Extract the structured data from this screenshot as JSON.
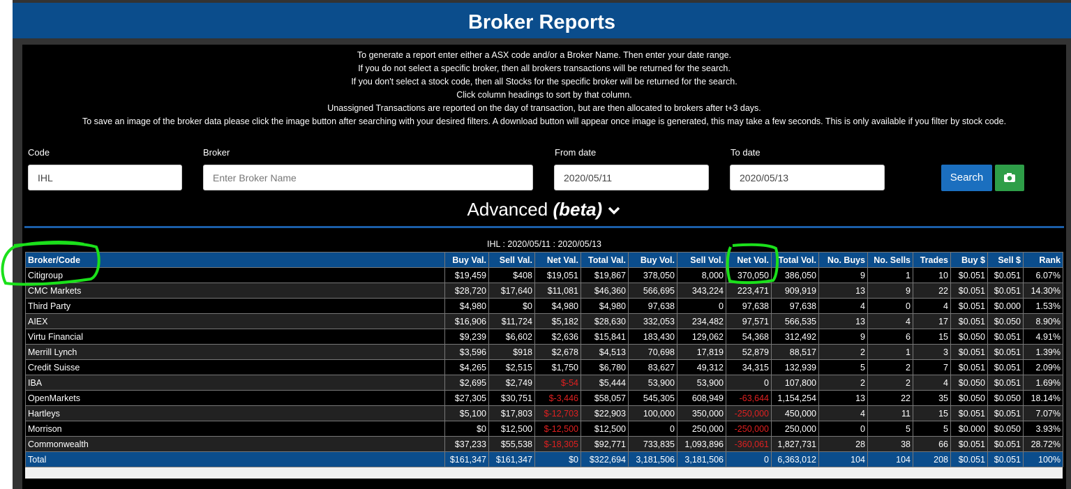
{
  "header": {
    "title": "Broker Reports"
  },
  "instructions": [
    "To generate a report enter either a ASX code and/or a Broker Name. Then enter your date range.",
    "If you do not select a specific broker, then all brokers transactions will be returned for the search.",
    "If you don't select a stock code, then all Stocks for the specific broker will be returned for the search.",
    "Click column headings to sort by that column.",
    "Unassigned Transactions are reported on the day of transaction, but are then allocated to brokers after t+3 days.",
    "To save an image of the broker data please click the image button after searching with your desired filters. A download button will appear once image is generated, this may take a few seconds. This is only available if you filter by stock code."
  ],
  "form": {
    "fields": [
      {
        "label": "Code",
        "value": "IHL"
      },
      {
        "label": "Broker",
        "placeholder": "Enter Broker Name"
      },
      {
        "label": "From date",
        "value": "2020/05/11"
      },
      {
        "label": "To date",
        "value": "2020/05/13"
      }
    ],
    "search": "Search"
  },
  "advanced": {
    "text": "Advanced",
    "beta": "(beta)"
  },
  "table": {
    "caption": "IHL : 2020/05/11 : 2020/05/13",
    "columns": [
      "Broker/Code",
      "Buy Val.",
      "Sell Val.",
      "Net Val.",
      "Total Val.",
      "Buy Vol.",
      "Sell Vol.",
      "Net Vol.",
      "Total Vol.",
      "No. Buys",
      "No. Sells",
      "Trades",
      "Buy $",
      "Sell $",
      "Rank"
    ],
    "rows": [
      [
        "Citigroup",
        "$19,459",
        "$408",
        "$19,051",
        "$19,867",
        "378,050",
        "8,000",
        "370,050",
        "386,050",
        "9",
        "1",
        "10",
        "$0.051",
        "$0.051",
        "6.07%"
      ],
      [
        "CMC Markets",
        "$28,720",
        "$17,640",
        "$11,081",
        "$46,360",
        "566,695",
        "343,224",
        "223,471",
        "909,919",
        "13",
        "9",
        "22",
        "$0.051",
        "$0.051",
        "14.30%"
      ],
      [
        "Third Party",
        "$4,980",
        "$0",
        "$4,980",
        "$4,980",
        "97,638",
        "0",
        "97,638",
        "97,638",
        "4",
        "0",
        "4",
        "$0.051",
        "$0.000",
        "1.53%"
      ],
      [
        "AIEX",
        "$16,906",
        "$11,724",
        "$5,182",
        "$28,630",
        "332,053",
        "234,482",
        "97,571",
        "566,535",
        "13",
        "4",
        "17",
        "$0.051",
        "$0.050",
        "8.90%"
      ],
      [
        "Virtu Financial",
        "$9,239",
        "$6,602",
        "$2,636",
        "$15,841",
        "183,430",
        "129,062",
        "54,368",
        "312,492",
        "9",
        "6",
        "15",
        "$0.050",
        "$0.051",
        "4.91%"
      ],
      [
        "Merrill Lynch",
        "$3,596",
        "$918",
        "$2,678",
        "$4,513",
        "70,698",
        "17,819",
        "52,879",
        "88,517",
        "2",
        "1",
        "3",
        "$0.051",
        "$0.051",
        "1.39%"
      ],
      [
        "Credit Suisse",
        "$4,265",
        "$2,515",
        "$1,750",
        "$6,780",
        "83,627",
        "49,312",
        "34,315",
        "132,939",
        "5",
        "2",
        "7",
        "$0.051",
        "$0.051",
        "2.09%"
      ],
      [
        "IBA",
        "$2,695",
        "$2,749",
        "$-54",
        "$5,444",
        "53,900",
        "53,900",
        "0",
        "107,800",
        "2",
        "2",
        "4",
        "$0.050",
        "$0.051",
        "1.69%"
      ],
      [
        "OpenMarkets",
        "$27,305",
        "$30,751",
        "$-3,446",
        "$58,057",
        "545,305",
        "608,949",
        "-63,644",
        "1,154,254",
        "13",
        "22",
        "35",
        "$0.050",
        "$0.050",
        "18.14%"
      ],
      [
        "Hartleys",
        "$5,100",
        "$17,803",
        "$-12,703",
        "$22,903",
        "100,000",
        "350,000",
        "-250,000",
        "450,000",
        "4",
        "11",
        "15",
        "$0.051",
        "$0.051",
        "7.07%"
      ],
      [
        "Morrison",
        "$0",
        "$12,500",
        "$-12,500",
        "$12,500",
        "0",
        "250,000",
        "-250,000",
        "250,000",
        "0",
        "5",
        "5",
        "$0.000",
        "$0.050",
        "3.93%"
      ],
      [
        "Commonwealth",
        "$37,233",
        "$55,538",
        "$-18,305",
        "$92,771",
        "733,835",
        "1,093,896",
        "-360,061",
        "1,827,731",
        "28",
        "38",
        "66",
        "$0.051",
        "$0.051",
        "28.72%"
      ]
    ],
    "total": [
      "Total",
      "$161,347",
      "$161,347",
      "$0",
      "$322,694",
      "3,181,506",
      "3,181,506",
      "0",
      "6,363,012",
      "104",
      "104",
      "208",
      "$0.051",
      "$0.051",
      "100%"
    ]
  }
}
